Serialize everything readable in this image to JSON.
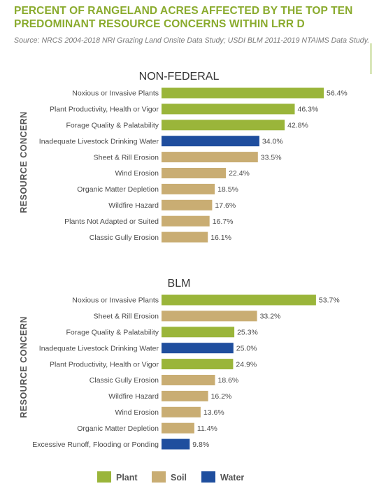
{
  "title": "PERCENT OF RANGELAND ACRES AFFECTED BY THE TOP TEN PREDOMINANT RESOURCE CONCERNS WITHIN LRR D",
  "source": "Source: NRCS 2004-2018 NRI Grazing Land Onsite Data Study; USDI BLM 2011-2019 NTAIMS Data Study.",
  "colors": {
    "Plant": "#9ab53a",
    "Soil": "#c9ad73",
    "Water": "#1f4e9e"
  },
  "legend": [
    {
      "key": "Plant",
      "label": "Plant"
    },
    {
      "key": "Soil",
      "label": "Soil"
    },
    {
      "key": "Water",
      "label": "Water"
    }
  ],
  "chart_data": [
    {
      "type": "bar",
      "title": "NON-FEDERAL",
      "ylabel": "RESOURCE CONCERN",
      "orientation": "horizontal",
      "xlim": [
        0,
        60
      ],
      "categories": [
        "Noxious or Invasive Plants",
        "Plant Productivity, Health or Vigor",
        "Forage Quality & Palatability",
        "Inadequate Livestock Drinking Water",
        "Sheet & Rill Erosion",
        "Wind Erosion",
        "Organic Matter Depletion",
        "Wildfire Hazard",
        "Plants Not Adapted or Suited",
        "Classic Gully Erosion"
      ],
      "values": [
        56.4,
        46.3,
        42.8,
        34.0,
        33.5,
        22.4,
        18.5,
        17.6,
        16.7,
        16.1
      ],
      "labels": [
        "56.4%",
        "46.3%",
        "42.8%",
        "34.0%",
        "33.5%",
        "22.4%",
        "18.5%",
        "17.6%",
        "16.7%",
        "16.1%"
      ],
      "groups": [
        "Plant",
        "Plant",
        "Plant",
        "Water",
        "Soil",
        "Soil",
        "Soil",
        "Soil",
        "Soil",
        "Soil"
      ]
    },
    {
      "type": "bar",
      "title": "BLM",
      "ylabel": "RESOURCE CONCERN",
      "orientation": "horizontal",
      "xlim": [
        0,
        60
      ],
      "categories": [
        "Noxious or Invasive Plants",
        "Sheet & Rill Erosion",
        "Forage Quality & Palatability",
        "Inadequate Livestock Drinking Water",
        "Plant Productivity, Health or Vigor",
        "Classic Gully Erosion",
        "Wildfire Hazard",
        "Wind Erosion",
        "Organic Matter Depletion",
        "Excessive Runoff, Flooding or Ponding"
      ],
      "values": [
        53.7,
        33.2,
        25.3,
        25.0,
        24.9,
        18.6,
        16.2,
        13.6,
        11.4,
        9.8
      ],
      "labels": [
        "53.7%",
        "33.2%",
        "25.3%",
        "25.0%",
        "24.9%",
        "18.6%",
        "16.2%",
        "13.6%",
        "11.4%",
        "9.8%"
      ],
      "groups": [
        "Plant",
        "Soil",
        "Plant",
        "Water",
        "Plant",
        "Soil",
        "Soil",
        "Soil",
        "Soil",
        "Water"
      ]
    }
  ]
}
